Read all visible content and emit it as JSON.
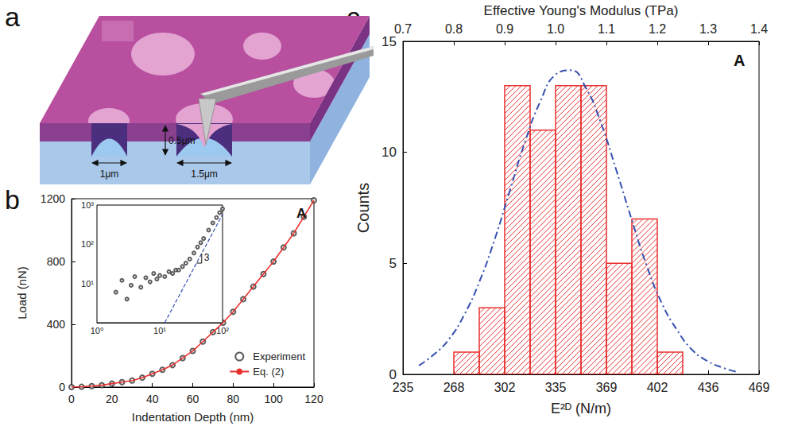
{
  "diagram": {
    "panel": "a",
    "labels": [
      "0.5μm",
      "1μm",
      "1.5μm"
    ]
  },
  "chart_data": [
    {
      "panel": "b",
      "type": "line",
      "xlabel": "Indentation Depth (nm)",
      "ylabel": "Load (nN)",
      "annotations": [
        "A"
      ],
      "x": [
        0,
        5,
        10,
        15,
        20,
        25,
        30,
        35,
        40,
        45,
        50,
        55,
        60,
        65,
        70,
        75,
        80,
        85,
        90,
        95,
        100,
        105,
        110,
        115,
        120
      ],
      "series": [
        {
          "name": "Experiment",
          "type": "scatter",
          "marker": "circle",
          "color": "#333333",
          "values": [
            0,
            2,
            6,
            12,
            22,
            32,
            42,
            60,
            85,
            110,
            140,
            185,
            230,
            290,
            350,
            410,
            480,
            560,
            640,
            720,
            800,
            890,
            980,
            1085,
            1190
          ]
        },
        {
          "name": "Eq. (2)",
          "type": "line",
          "line_style": "solid",
          "color": "#e8312f",
          "values": [
            0,
            2,
            6,
            12,
            22,
            32,
            42,
            60,
            85,
            110,
            140,
            185,
            230,
            290,
            350,
            410,
            480,
            560,
            640,
            720,
            800,
            890,
            980,
            1085,
            1190
          ]
        }
      ],
      "xlim": [
        0,
        120
      ],
      "xticks": [
        0,
        20,
        40,
        60,
        80,
        100,
        120
      ],
      "ylim": [
        0,
        1200
      ],
      "yticks": [
        0,
        400,
        800,
        1200
      ],
      "legend": "lower right",
      "grid": false,
      "inset": {
        "type": "scatter",
        "log": true,
        "annotations": [
          "3"
        ],
        "series": [
          {
            "type": "scatter",
            "marker": "circle",
            "color": "#333333",
            "x": [
              2,
              2.5,
              3,
              3.5,
              4,
              5,
              6,
              7,
              8,
              9,
              10,
              12,
              14,
              16,
              18,
              20,
              23,
              26,
              30,
              35,
              40,
              45,
              50,
              60,
              70,
              80,
              90,
              100
            ],
            "values": [
              6,
              12,
              4,
              9,
              15,
              8,
              14,
              11,
              18,
              13,
              16,
              15,
              20,
              18,
              22,
              22,
              27,
              33,
              42,
              60,
              85,
              110,
              140,
              230,
              350,
              480,
              640,
              800
            ]
          },
          {
            "type": "line",
            "line_style": "dashed",
            "color": "#3550b0",
            "x": [
              12,
              100
            ],
            "values": [
              1,
              580
            ]
          }
        ],
        "xlim": [
          1,
          100
        ],
        "xticks": [
          {
            "value": 1,
            "label": "10⁰"
          },
          {
            "value": 10,
            "label": "10¹"
          },
          {
            "value": 100,
            "label": "10²"
          }
        ],
        "ylim": [
          1,
          1000
        ],
        "yticks": [
          {
            "value": 10,
            "label": "10¹"
          },
          {
            "value": 100,
            "label": "10²"
          },
          {
            "value": 1000,
            "label": "10³"
          }
        ],
        "grid": false
      }
    },
    {
      "panel": "c",
      "type": "histogram",
      "xlabel": "E²ᴰ (N/m)",
      "ylabel": "Counts",
      "x2label": "Effective Young's Modulus (TPa)",
      "annotations": [
        "A"
      ],
      "bins": [
        268,
        284.75,
        301.5,
        318.25,
        335,
        351.75,
        368.5,
        385.25,
        402,
        418.75
      ],
      "counts": [
        1,
        3,
        13,
        11,
        13,
        13,
        5,
        7,
        1
      ],
      "color": "#e8312f",
      "fit": {
        "type": "line",
        "line_style": "dashdot",
        "color": "#3550b0",
        "x": [
          245,
          255,
          265,
          275,
          285,
          295,
          305,
          315,
          325,
          335,
          345,
          355,
          365,
          375,
          385,
          395,
          405,
          415,
          425,
          435,
          445,
          455
        ],
        "values": [
          0.4,
          0.9,
          1.6,
          2.7,
          4.2,
          6.1,
          8.3,
          10.5,
          12.3,
          13.5,
          13.7,
          12.9,
          11.3,
          9.2,
          7.0,
          4.9,
          3.2,
          2.0,
          1.1,
          0.6,
          0.3,
          0.1
        ]
      },
      "xlim": [
        234.5,
        469
      ],
      "xticks": [
        {
          "value": 234.5,
          "label": "235"
        },
        268,
        {
          "value": 301.5,
          "label": "302"
        },
        335,
        {
          "value": 368.5,
          "label": "369"
        },
        402,
        {
          "value": 435.5,
          "label": "436"
        },
        469
      ],
      "x2lim": [
        0.7,
        1.4
      ],
      "x2ticks": [
        0.7,
        0.8,
        0.9,
        {
          "value": 1,
          "label": "1.0"
        },
        1.1,
        1.2,
        1.3,
        1.4
      ],
      "ylim": [
        0,
        15
      ],
      "yticks": [
        0,
        5,
        10,
        15
      ],
      "grid": false
    }
  ]
}
